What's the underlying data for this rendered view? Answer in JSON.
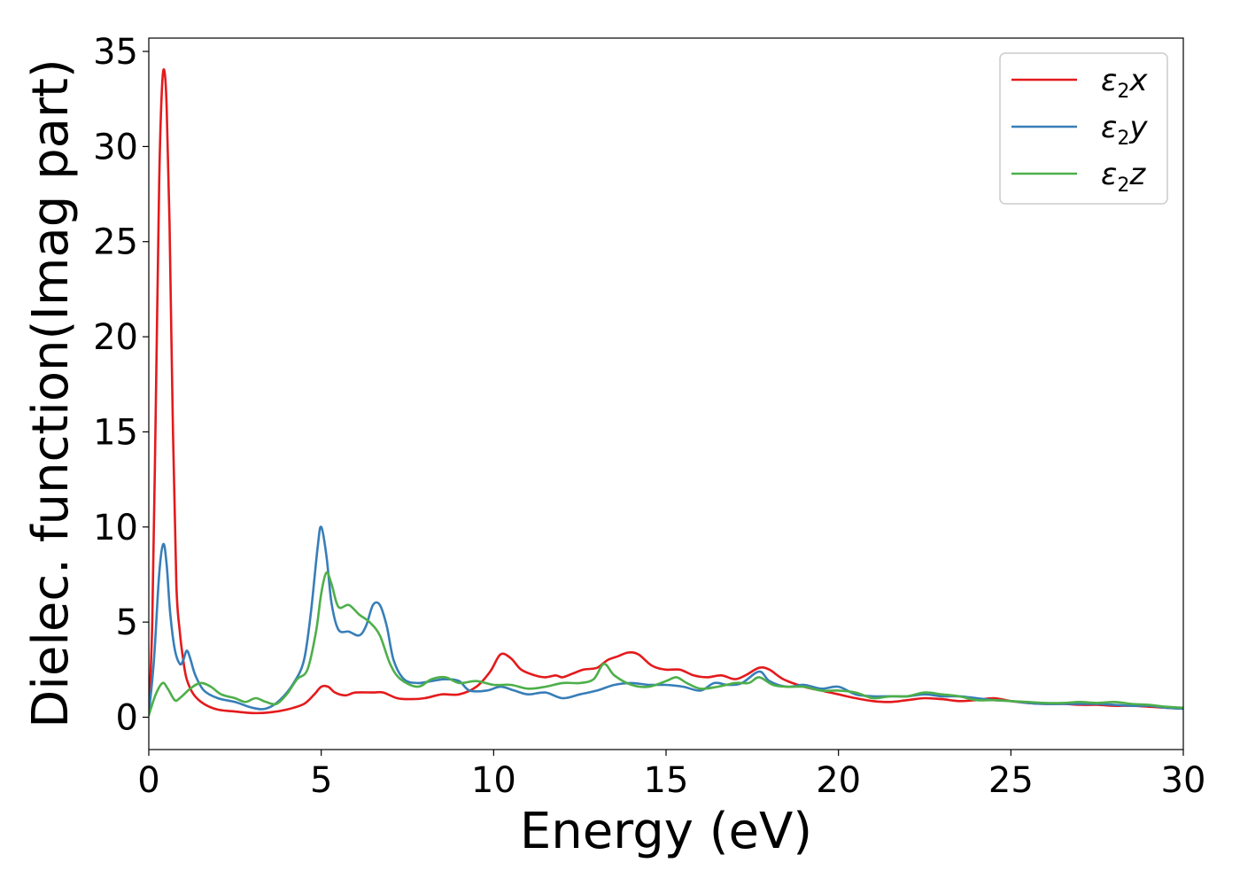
{
  "chart_data": {
    "type": "line",
    "xlabel": "Energy (eV)",
    "ylabel": "Dielec. function(Imag part)",
    "xlim": [
      0,
      30
    ],
    "ylim": [
      -1.7,
      35.7
    ],
    "xticks": [
      0,
      5,
      10,
      15,
      20,
      25,
      30
    ],
    "yticks": [
      0,
      5,
      10,
      15,
      20,
      25,
      30,
      35
    ],
    "grid": false,
    "legend_position": "top-right",
    "series": [
      {
        "name": "ε2x",
        "legend": {
          "base": "ε",
          "sub": "2",
          "axis": "x"
        },
        "color": "#e41a1c",
        "points": [
          [
            0,
            0.2
          ],
          [
            0.1,
            5
          ],
          [
            0.2,
            16
          ],
          [
            0.3,
            28
          ],
          [
            0.38,
            33
          ],
          [
            0.45,
            34
          ],
          [
            0.52,
            32
          ],
          [
            0.6,
            26
          ],
          [
            0.7,
            15
          ],
          [
            0.8,
            7
          ],
          [
            0.9,
            4.5
          ],
          [
            1.0,
            3
          ],
          [
            1.1,
            2
          ],
          [
            1.3,
            1.2
          ],
          [
            1.6,
            0.7
          ],
          [
            2.0,
            0.4
          ],
          [
            2.5,
            0.3
          ],
          [
            3.0,
            0.22
          ],
          [
            3.5,
            0.25
          ],
          [
            4.0,
            0.4
          ],
          [
            4.5,
            0.7
          ],
          [
            4.8,
            1.2
          ],
          [
            5.0,
            1.6
          ],
          [
            5.2,
            1.6
          ],
          [
            5.4,
            1.3
          ],
          [
            5.7,
            1.15
          ],
          [
            6.0,
            1.3
          ],
          [
            6.5,
            1.3
          ],
          [
            6.8,
            1.3
          ],
          [
            7.2,
            1.0
          ],
          [
            7.6,
            0.95
          ],
          [
            8.0,
            1.0
          ],
          [
            8.5,
            1.2
          ],
          [
            9.0,
            1.2
          ],
          [
            9.5,
            1.6
          ],
          [
            9.9,
            2.4
          ],
          [
            10.2,
            3.3
          ],
          [
            10.5,
            3.1
          ],
          [
            10.8,
            2.5
          ],
          [
            11.2,
            2.2
          ],
          [
            11.5,
            2.1
          ],
          [
            11.8,
            2.2
          ],
          [
            12.0,
            2.1
          ],
          [
            12.3,
            2.3
          ],
          [
            12.6,
            2.5
          ],
          [
            13.0,
            2.6
          ],
          [
            13.3,
            3.0
          ],
          [
            13.6,
            3.2
          ],
          [
            13.9,
            3.4
          ],
          [
            14.2,
            3.3
          ],
          [
            14.6,
            2.7
          ],
          [
            15.0,
            2.5
          ],
          [
            15.4,
            2.5
          ],
          [
            15.8,
            2.2
          ],
          [
            16.2,
            2.1
          ],
          [
            16.6,
            2.2
          ],
          [
            17.0,
            2.0
          ],
          [
            17.3,
            2.2
          ],
          [
            17.7,
            2.6
          ],
          [
            18.0,
            2.5
          ],
          [
            18.4,
            2.0
          ],
          [
            19.0,
            1.6
          ],
          [
            19.5,
            1.4
          ],
          [
            20.0,
            1.2
          ],
          [
            20.5,
            1.0
          ],
          [
            21.0,
            0.85
          ],
          [
            21.5,
            0.8
          ],
          [
            22.0,
            0.9
          ],
          [
            22.5,
            1.0
          ],
          [
            23.0,
            0.95
          ],
          [
            23.5,
            0.85
          ],
          [
            24.0,
            0.9
          ],
          [
            24.5,
            1.0
          ],
          [
            25.0,
            0.85
          ],
          [
            25.5,
            0.75
          ],
          [
            26.0,
            0.7
          ],
          [
            26.5,
            0.7
          ],
          [
            27.0,
            0.65
          ],
          [
            27.5,
            0.65
          ],
          [
            28.0,
            0.6
          ],
          [
            28.5,
            0.6
          ],
          [
            29.0,
            0.55
          ],
          [
            29.5,
            0.5
          ],
          [
            30.0,
            0.45
          ]
        ]
      },
      {
        "name": "ε2y",
        "legend": {
          "base": "ε",
          "sub": "2",
          "axis": "y"
        },
        "color": "#377eb8",
        "points": [
          [
            0,
            0.2
          ],
          [
            0.15,
            3
          ],
          [
            0.3,
            7.5
          ],
          [
            0.42,
            9.1
          ],
          [
            0.52,
            8
          ],
          [
            0.62,
            5.5
          ],
          [
            0.75,
            3.6
          ],
          [
            0.9,
            2.8
          ],
          [
            1.0,
            3.0
          ],
          [
            1.1,
            3.5
          ],
          [
            1.2,
            3.1
          ],
          [
            1.35,
            2.2
          ],
          [
            1.6,
            1.4
          ],
          [
            2.0,
            1.0
          ],
          [
            2.5,
            0.8
          ],
          [
            3.0,
            0.5
          ],
          [
            3.4,
            0.45
          ],
          [
            3.8,
            0.9
          ],
          [
            4.2,
            1.8
          ],
          [
            4.5,
            3.0
          ],
          [
            4.7,
            5.5
          ],
          [
            4.9,
            9.0
          ],
          [
            5.0,
            10.0
          ],
          [
            5.15,
            8.5
          ],
          [
            5.3,
            6.0
          ],
          [
            5.5,
            4.6
          ],
          [
            5.8,
            4.5
          ],
          [
            6.1,
            4.3
          ],
          [
            6.3,
            4.8
          ],
          [
            6.5,
            5.9
          ],
          [
            6.7,
            5.9
          ],
          [
            6.9,
            4.8
          ],
          [
            7.1,
            3.0
          ],
          [
            7.4,
            2.0
          ],
          [
            7.8,
            1.8
          ],
          [
            8.2,
            1.9
          ],
          [
            8.6,
            2.0
          ],
          [
            9.0,
            1.9
          ],
          [
            9.3,
            1.4
          ],
          [
            9.8,
            1.4
          ],
          [
            10.2,
            1.6
          ],
          [
            10.6,
            1.4
          ],
          [
            11.0,
            1.2
          ],
          [
            11.5,
            1.3
          ],
          [
            12.0,
            1.0
          ],
          [
            12.5,
            1.2
          ],
          [
            13.0,
            1.4
          ],
          [
            13.5,
            1.7
          ],
          [
            14.0,
            1.8
          ],
          [
            14.5,
            1.7
          ],
          [
            15.0,
            1.7
          ],
          [
            15.5,
            1.6
          ],
          [
            16.0,
            1.4
          ],
          [
            16.4,
            1.8
          ],
          [
            16.8,
            1.7
          ],
          [
            17.2,
            1.8
          ],
          [
            17.7,
            2.4
          ],
          [
            18.0,
            1.9
          ],
          [
            18.5,
            1.6
          ],
          [
            19.0,
            1.7
          ],
          [
            19.5,
            1.5
          ],
          [
            20.0,
            1.6
          ],
          [
            20.5,
            1.2
          ],
          [
            21.0,
            1.1
          ],
          [
            21.5,
            1.1
          ],
          [
            22.0,
            1.1
          ],
          [
            22.5,
            1.2
          ],
          [
            23.0,
            1.1
          ],
          [
            23.5,
            1.1
          ],
          [
            24.0,
            1.0
          ],
          [
            24.5,
            0.9
          ],
          [
            25.0,
            0.85
          ],
          [
            25.5,
            0.75
          ],
          [
            26.0,
            0.7
          ],
          [
            26.5,
            0.7
          ],
          [
            27.0,
            0.7
          ],
          [
            27.5,
            0.7
          ],
          [
            28.0,
            0.65
          ],
          [
            28.5,
            0.6
          ],
          [
            29.0,
            0.6
          ],
          [
            29.5,
            0.5
          ],
          [
            30.0,
            0.45
          ]
        ]
      },
      {
        "name": "ε2z",
        "legend": {
          "base": "ε",
          "sub": "2",
          "axis": "z"
        },
        "color": "#4daf4a",
        "points": [
          [
            0,
            0.1
          ],
          [
            0.2,
            1.2
          ],
          [
            0.4,
            1.8
          ],
          [
            0.55,
            1.5
          ],
          [
            0.75,
            0.9
          ],
          [
            0.9,
            1.0
          ],
          [
            1.2,
            1.5
          ],
          [
            1.5,
            1.8
          ],
          [
            1.8,
            1.6
          ],
          [
            2.1,
            1.2
          ],
          [
            2.5,
            1.0
          ],
          [
            2.8,
            0.8
          ],
          [
            3.1,
            1.0
          ],
          [
            3.4,
            0.8
          ],
          [
            3.7,
            0.7
          ],
          [
            4.0,
            1.2
          ],
          [
            4.3,
            2.0
          ],
          [
            4.6,
            2.5
          ],
          [
            4.85,
            4.5
          ],
          [
            5.0,
            6.5
          ],
          [
            5.15,
            7.6
          ],
          [
            5.3,
            7.0
          ],
          [
            5.5,
            5.8
          ],
          [
            5.8,
            5.9
          ],
          [
            6.1,
            5.4
          ],
          [
            6.4,
            5.0
          ],
          [
            6.7,
            4.3
          ],
          [
            7.0,
            2.8
          ],
          [
            7.3,
            2.0
          ],
          [
            7.8,
            1.6
          ],
          [
            8.2,
            2.0
          ],
          [
            8.6,
            2.1
          ],
          [
            9.0,
            1.8
          ],
          [
            9.5,
            1.9
          ],
          [
            10.0,
            1.7
          ],
          [
            10.5,
            1.7
          ],
          [
            11.0,
            1.5
          ],
          [
            11.5,
            1.6
          ],
          [
            12.0,
            1.8
          ],
          [
            12.5,
            1.8
          ],
          [
            12.9,
            2.0
          ],
          [
            13.2,
            2.8
          ],
          [
            13.5,
            2.2
          ],
          [
            14.0,
            1.7
          ],
          [
            14.5,
            1.6
          ],
          [
            15.0,
            1.9
          ],
          [
            15.3,
            2.1
          ],
          [
            15.6,
            1.8
          ],
          [
            16.0,
            1.5
          ],
          [
            16.5,
            1.6
          ],
          [
            17.0,
            1.8
          ],
          [
            17.4,
            1.8
          ],
          [
            17.7,
            2.1
          ],
          [
            18.1,
            1.7
          ],
          [
            18.5,
            1.6
          ],
          [
            19.0,
            1.6
          ],
          [
            19.5,
            1.4
          ],
          [
            20.0,
            1.4
          ],
          [
            20.5,
            1.3
          ],
          [
            21.0,
            1.0
          ],
          [
            21.5,
            1.1
          ],
          [
            22.0,
            1.1
          ],
          [
            22.5,
            1.3
          ],
          [
            23.0,
            1.2
          ],
          [
            23.5,
            1.1
          ],
          [
            24.0,
            0.9
          ],
          [
            24.5,
            0.9
          ],
          [
            25.0,
            0.85
          ],
          [
            25.5,
            0.8
          ],
          [
            26.0,
            0.75
          ],
          [
            26.5,
            0.75
          ],
          [
            27.0,
            0.8
          ],
          [
            27.5,
            0.75
          ],
          [
            28.0,
            0.8
          ],
          [
            28.5,
            0.7
          ],
          [
            29.0,
            0.65
          ],
          [
            29.5,
            0.55
          ],
          [
            30.0,
            0.5
          ]
        ]
      }
    ]
  }
}
